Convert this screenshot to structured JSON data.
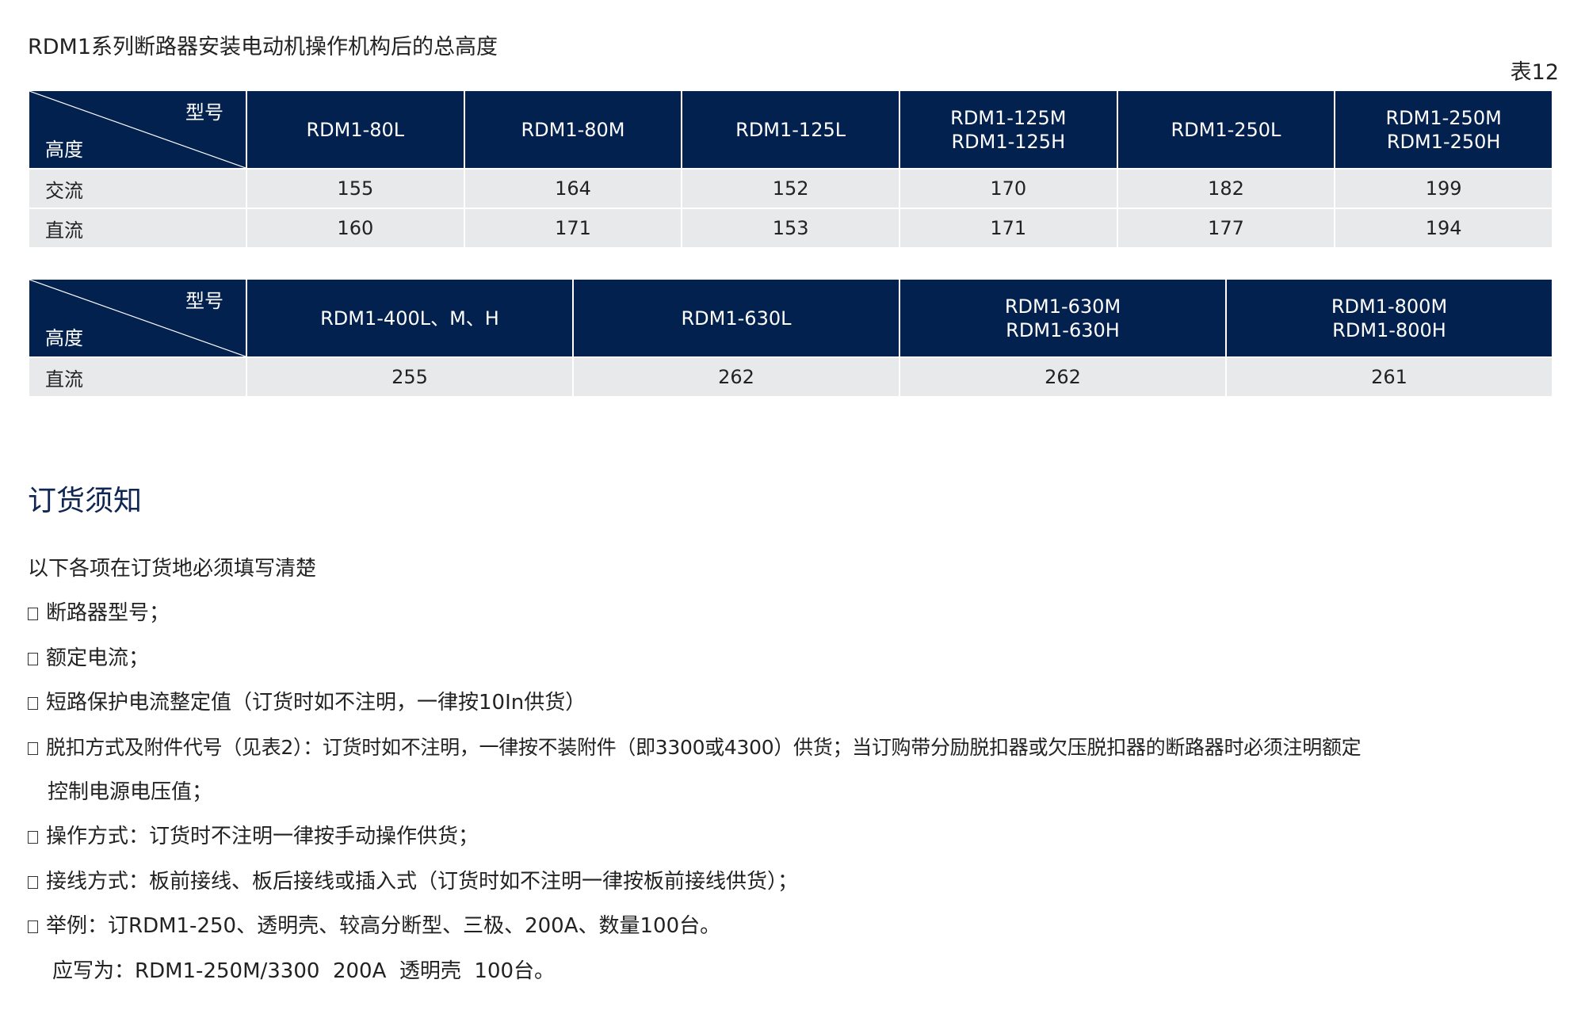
{
  "title": "RDM1系列断路器安装电动机操作机构后的总高度",
  "table_number": "表12",
  "corner": {
    "model_label": "型号",
    "height_label": "高度"
  },
  "colors": {
    "header_bg": "#03214f",
    "row_bg": "#e8e9eb",
    "heading": "#0f2553"
  },
  "table1": {
    "headers": [
      [
        "RDM1-80L"
      ],
      [
        "RDM1-80M"
      ],
      [
        "RDM1-125L"
      ],
      [
        "RDM1-125M",
        "RDM1-125H"
      ],
      [
        "RDM1-250L"
      ],
      [
        "RDM1-250M",
        "RDM1-250H"
      ]
    ],
    "rows": [
      {
        "label": "交流",
        "values": [
          "155",
          "164",
          "152",
          "170",
          "182",
          "199"
        ]
      },
      {
        "label": "直流",
        "values": [
          "160",
          "171",
          "153",
          "171",
          "177",
          "194"
        ]
      }
    ]
  },
  "table2": {
    "headers": [
      [
        "RDM1-400L、M、H"
      ],
      [
        "RDM1-630L"
      ],
      [
        "RDM1-630M",
        "RDM1-630H"
      ],
      [
        "RDM1-800M",
        "RDM1-800H"
      ]
    ],
    "rows": [
      {
        "label": "直流",
        "values": [
          "255",
          "262",
          "262",
          "261"
        ]
      }
    ]
  },
  "order": {
    "heading": "订货须知",
    "intro": "以下各项在订货地必须填写清楚",
    "items": [
      {
        "text": "断路器型号；"
      },
      {
        "text": "额定电流；"
      },
      {
        "text": "短路保护电流整定值（订货时如不注明，一律按10In供货）"
      },
      {
        "text": "脱扣方式及附件代号（见表2）：订货时如不注明，一律按不装附件（即3300或4300）供货；当订购带分励脱扣器或欠压脱扣器的断路器时必须注明额定",
        "continuation": "控制电源电压值；"
      },
      {
        "text": "操作方式：订货时不注明一律按手动操作供货；"
      },
      {
        "text": "接线方式：板前接线、板后接线或插入式（订货时如不注明一律按板前接线供货）；"
      },
      {
        "text": "举例：订RDM1-250、透明壳、较高分断型、三极、200A、数量100台。"
      }
    ],
    "example": "应写为：RDM1-250M/3300  200A  透明壳  100台。"
  }
}
